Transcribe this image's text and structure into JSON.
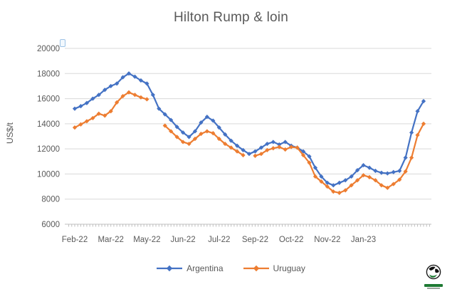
{
  "title": "Hilton Rump & loin",
  "colors": {
    "argentina": "#4472C4",
    "uruguay": "#ED7D31",
    "gridline": "#D9D9D9",
    "axis_line": "#BFBFBF",
    "text": "#595959"
  },
  "legend": [
    {
      "label": "Argentina",
      "color": "#4472C4"
    },
    {
      "label": "Uruguay",
      "color": "#ED7D31"
    }
  ],
  "logo": {
    "name": "globe-logo"
  },
  "chart_data": {
    "type": "line",
    "title": "Hilton Rump & loin",
    "xlabel": "",
    "ylabel": "US$/t",
    "ylim": [
      6000,
      20000
    ],
    "y_ticks": [
      20000,
      18000,
      16000,
      14000,
      12000,
      10000,
      8000,
      6000
    ],
    "grid": "horizontal",
    "legend_position": "bottom",
    "x_unit": "weekly",
    "x_tick_labels": [
      "Feb-22",
      "Mar-22",
      "May-22",
      "Jun-22",
      "Jul-22",
      "Sep-22",
      "Oct-22",
      "Nov-22",
      "Jan-23"
    ],
    "x_label_indices": [
      0,
      6,
      12,
      18,
      24,
      30,
      36,
      42,
      48
    ],
    "marker": "diamond",
    "series": [
      {
        "name": "Argentina",
        "color": "#4472C4",
        "values": [
          15200,
          15400,
          15650,
          16000,
          16300,
          16700,
          17000,
          17200,
          17700,
          18000,
          17750,
          17450,
          17200,
          16300,
          15200,
          14750,
          14300,
          13750,
          13300,
          12950,
          13400,
          14100,
          14550,
          14250,
          13700,
          13150,
          12650,
          12250,
          11900,
          11600,
          11800,
          12100,
          12400,
          12550,
          12350,
          12550,
          12250,
          12100,
          11800,
          11400,
          10500,
          9800,
          9300,
          9100,
          9300,
          9500,
          9800,
          10300,
          10700,
          10500,
          10250,
          10100,
          10050,
          10150,
          10250,
          11300,
          13300,
          15000,
          15800
        ]
      },
      {
        "name": "Uruguay",
        "color": "#ED7D31",
        "values": [
          13700,
          13950,
          14200,
          14450,
          14800,
          14650,
          15000,
          15700,
          16200,
          16500,
          16300,
          16100,
          15950,
          null,
          null,
          13850,
          13400,
          12950,
          12550,
          12400,
          12800,
          13200,
          13400,
          13250,
          12800,
          12400,
          12100,
          11800,
          11500,
          null,
          11450,
          11600,
          11900,
          12050,
          12150,
          11950,
          12150,
          12100,
          11500,
          10900,
          9800,
          9400,
          9000,
          8600,
          8500,
          8700,
          9100,
          9500,
          9900,
          9750,
          9500,
          9100,
          8900,
          9200,
          9550,
          10200,
          11300,
          13100,
          14000
        ]
      }
    ]
  }
}
